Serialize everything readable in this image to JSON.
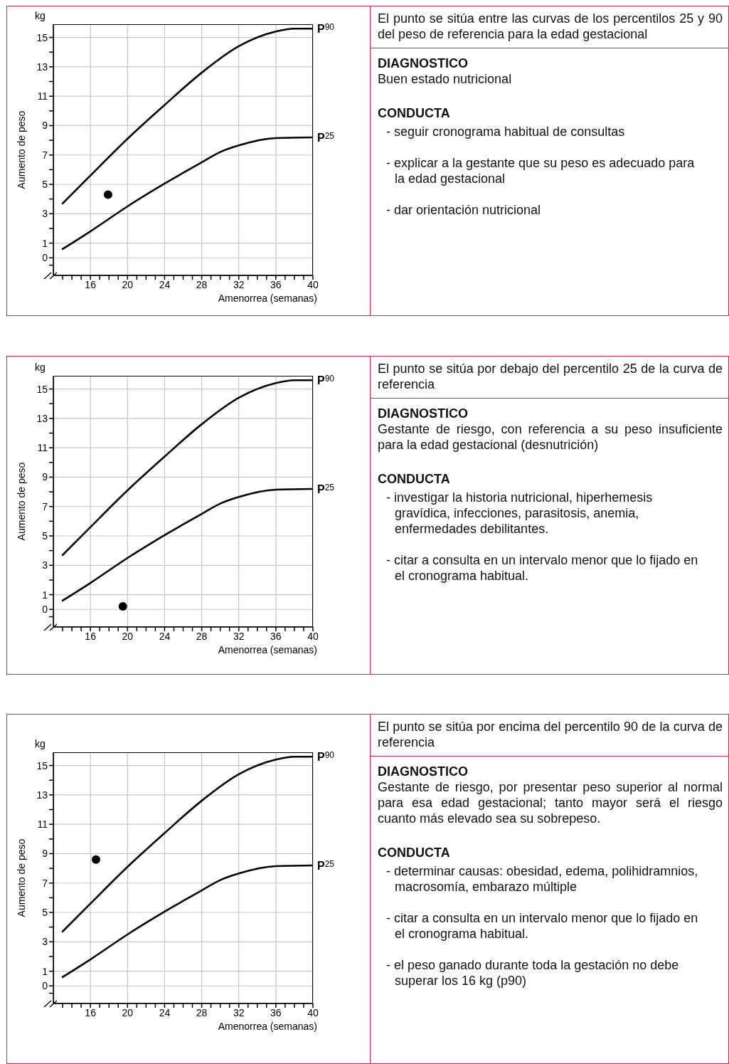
{
  "chart_data": [
    {
      "type": "line",
      "xlabel": "Amenorrea (semanas)",
      "ylabel": "Aumento de peso",
      "annotations": [
        "kg"
      ],
      "xlim": [
        12,
        40
      ],
      "ylim": [
        -1.2,
        15.9
      ],
      "grid": true,
      "xticks": [
        {
          "value": 13,
          "label": null
        },
        {
          "value": 14,
          "label": null
        },
        {
          "value": 15,
          "label": null
        },
        16,
        {
          "value": 17,
          "label": null
        },
        {
          "value": 18,
          "label": null
        },
        {
          "value": 19,
          "label": null
        },
        20,
        {
          "value": 21,
          "label": null
        },
        {
          "value": 22,
          "label": null
        },
        {
          "value": 23,
          "label": null
        },
        24,
        {
          "value": 25,
          "label": null
        },
        {
          "value": 26,
          "label": null
        },
        {
          "value": 27,
          "label": null
        },
        28,
        {
          "value": 29,
          "label": null
        },
        {
          "value": 30,
          "label": null
        },
        {
          "value": 31,
          "label": null
        },
        32,
        {
          "value": 33,
          "label": null
        },
        {
          "value": 34,
          "label": null
        },
        {
          "value": 35,
          "label": null
        },
        36,
        {
          "value": 37,
          "label": null
        },
        {
          "value": 38,
          "label": null
        },
        {
          "value": 39,
          "label": null
        },
        40
      ],
      "yticks": [
        {
          "value": -0.5,
          "label": null
        },
        0,
        1,
        {
          "value": 2,
          "label": null
        },
        3,
        {
          "value": 4,
          "label": null
        },
        5,
        {
          "value": 6,
          "label": null
        },
        7,
        {
          "value": 8,
          "label": null
        },
        9,
        {
          "value": 10,
          "label": null
        },
        11,
        {
          "value": 12,
          "label": null
        },
        13,
        {
          "value": 14,
          "label": null
        },
        15
      ],
      "series": [
        {
          "name": "P$^{90}$",
          "color": "#000000",
          "x": [
            13,
            16,
            20,
            24,
            28,
            32,
            36,
            38,
            40
          ],
          "values": [
            3.7,
            5.6,
            8.1,
            10.4,
            12.6,
            14.4,
            15.4,
            15.6,
            15.6
          ]
        },
        {
          "name": "P$^{25}$",
          "color": "#000000",
          "x": [
            13,
            16,
            20,
            24,
            28,
            30,
            32,
            36,
            40
          ],
          "values": [
            0.6,
            1.8,
            3.5,
            5.05,
            6.5,
            7.2,
            7.65,
            8.15,
            8.2
          ]
        },
        {
          "type": "scatter",
          "color": "#000000",
          "x": [
            17.9
          ],
          "values": [
            4.3
          ]
        }
      ]
    },
    {
      "type": "other",
      "title": "El punto se sitúa entre las curvas de los percentilos 25 y 90 del peso de referencia para la edad gestacional",
      "subtitle": "DIAGNOSTICO",
      "annotations": [
        "Buen estado nutricional",
        "CONDUCTA",
        "- seguir cronograma habitual de consultas",
        "- explicar a la gestante que su peso es adecuado para la edad gestacional",
        "- dar orientación nutricional"
      ]
    },
    {
      "type": "line",
      "xlabel": "Amenorrea (semanas)",
      "ylabel": "Aumento de peso",
      "annotations": [
        "kg"
      ],
      "xlim": [
        12,
        40
      ],
      "ylim": [
        -1.2,
        15.9
      ],
      "grid": true,
      "xticks": [
        {
          "value": 13,
          "label": null
        },
        {
          "value": 14,
          "label": null
        },
        {
          "value": 15,
          "label": null
        },
        16,
        {
          "value": 17,
          "label": null
        },
        {
          "value": 18,
          "label": null
        },
        {
          "value": 19,
          "label": null
        },
        20,
        {
          "value": 21,
          "label": null
        },
        {
          "value": 22,
          "label": null
        },
        {
          "value": 23,
          "label": null
        },
        24,
        {
          "value": 25,
          "label": null
        },
        {
          "value": 26,
          "label": null
        },
        {
          "value": 27,
          "label": null
        },
        28,
        {
          "value": 29,
          "label": null
        },
        {
          "value": 30,
          "label": null
        },
        {
          "value": 31,
          "label": null
        },
        32,
        {
          "value": 33,
          "label": null
        },
        {
          "value": 34,
          "label": null
        },
        {
          "value": 35,
          "label": null
        },
        36,
        {
          "value": 37,
          "label": null
        },
        {
          "value": 38,
          "label": null
        },
        {
          "value": 39,
          "label": null
        },
        40
      ],
      "yticks": [
        {
          "value": -0.5,
          "label": null
        },
        0,
        1,
        {
          "value": 2,
          "label": null
        },
        3,
        {
          "value": 4,
          "label": null
        },
        5,
        {
          "value": 6,
          "label": null
        },
        7,
        {
          "value": 8,
          "label": null
        },
        9,
        {
          "value": 10,
          "label": null
        },
        11,
        {
          "value": 12,
          "label": null
        },
        13,
        {
          "value": 14,
          "label": null
        },
        15
      ],
      "series": [
        {
          "name": "P$^{90}$",
          "color": "#000000",
          "x": [
            13,
            16,
            20,
            24,
            28,
            32,
            36,
            38,
            40
          ],
          "values": [
            3.7,
            5.6,
            8.1,
            10.4,
            12.6,
            14.4,
            15.4,
            15.6,
            15.6
          ]
        },
        {
          "name": "P$^{25}$",
          "color": "#000000",
          "x": [
            13,
            16,
            20,
            24,
            28,
            30,
            32,
            36,
            40
          ],
          "values": [
            0.6,
            1.8,
            3.5,
            5.05,
            6.5,
            7.2,
            7.65,
            8.15,
            8.2
          ]
        },
        {
          "type": "scatter",
          "color": "#000000",
          "x": [
            19.5
          ],
          "values": [
            0.2
          ]
        }
      ]
    },
    {
      "type": "other",
      "title": "El punto se sitúa por debajo del percentilo 25 de la curva de referencia",
      "subtitle": "DIAGNOSTICO",
      "annotations": [
        "Gestante de riesgo, con referencia a su peso insuficiente para la edad gestacional (desnutrición)",
        "CONDUCTA",
        "- investigar la historia nutricional, hiperhemesis gravídica, infecciones, parasitosis, anemia, enfermedades debilitantes.",
        "- citar a consulta en un intervalo menor que lo fijado en el cronograma habitual."
      ]
    },
    {
      "type": "line",
      "xlabel": "Amenorrea (semanas)",
      "ylabel": "Aumento de peso",
      "annotations": [
        "kg"
      ],
      "xlim": [
        12,
        40
      ],
      "ylim": [
        -1.2,
        15.9
      ],
      "grid": true,
      "xticks": [
        {
          "value": 13,
          "label": null
        },
        {
          "value": 14,
          "label": null
        },
        {
          "value": 15,
          "label": null
        },
        16,
        {
          "value": 17,
          "label": null
        },
        {
          "value": 18,
          "label": null
        },
        {
          "value": 19,
          "label": null
        },
        20,
        {
          "value": 21,
          "label": null
        },
        {
          "value": 22,
          "label": null
        },
        {
          "value": 23,
          "label": null
        },
        24,
        {
          "value": 25,
          "label": null
        },
        {
          "value": 26,
          "label": null
        },
        {
          "value": 27,
          "label": null
        },
        28,
        {
          "value": 29,
          "label": null
        },
        {
          "value": 30,
          "label": null
        },
        {
          "value": 31,
          "label": null
        },
        32,
        {
          "value": 33,
          "label": null
        },
        {
          "value": 34,
          "label": null
        },
        {
          "value": 35,
          "label": null
        },
        36,
        {
          "value": 37,
          "label": null
        },
        {
          "value": 38,
          "label": null
        },
        {
          "value": 39,
          "label": null
        },
        40
      ],
      "yticks": [
        {
          "value": -0.5,
          "label": null
        },
        0,
        1,
        {
          "value": 2,
          "label": null
        },
        3,
        {
          "value": 4,
          "label": null
        },
        5,
        {
          "value": 6,
          "label": null
        },
        7,
        {
          "value": 8,
          "label": null
        },
        9,
        {
          "value": 10,
          "label": null
        },
        11,
        {
          "value": 12,
          "label": null
        },
        13,
        {
          "value": 14,
          "label": null
        },
        15
      ],
      "series": [
        {
          "name": "P$^{90}$",
          "color": "#000000",
          "x": [
            13,
            16,
            20,
            24,
            28,
            32,
            36,
            38,
            40
          ],
          "values": [
            3.7,
            5.6,
            8.1,
            10.4,
            12.6,
            14.4,
            15.4,
            15.6,
            15.6
          ]
        },
        {
          "name": "P$^{25}$",
          "color": "#000000",
          "x": [
            13,
            16,
            20,
            24,
            28,
            30,
            32,
            36,
            40
          ],
          "values": [
            0.6,
            1.8,
            3.5,
            5.05,
            6.5,
            7.2,
            7.65,
            8.15,
            8.2
          ]
        },
        {
          "type": "scatter",
          "color": "#000000",
          "x": [
            16.6
          ],
          "values": [
            8.6
          ]
        }
      ]
    },
    {
      "type": "other",
      "title": "El punto se sitúa por encima del percentilo 90 de la curva de referencia",
      "subtitle": "DIAGNOSTICO",
      "annotations": [
        "Gestante de riesgo, por presentar peso superior al normal para esa edad gestacional; tanto mayor será el riesgo cuanto más elevado sea su sobrepeso.",
        "CONDUCTA",
        "- determinar causas: obesidad, edema, polihidramnios, macrosomía, embarazo múltiple",
        "- citar a consulta en un intervalo menor que lo fijado en el cronograma habitual.",
        "- el peso ganado durante toda la gestación no debe superar los 16 kg  (p90)"
      ]
    }
  ]
}
